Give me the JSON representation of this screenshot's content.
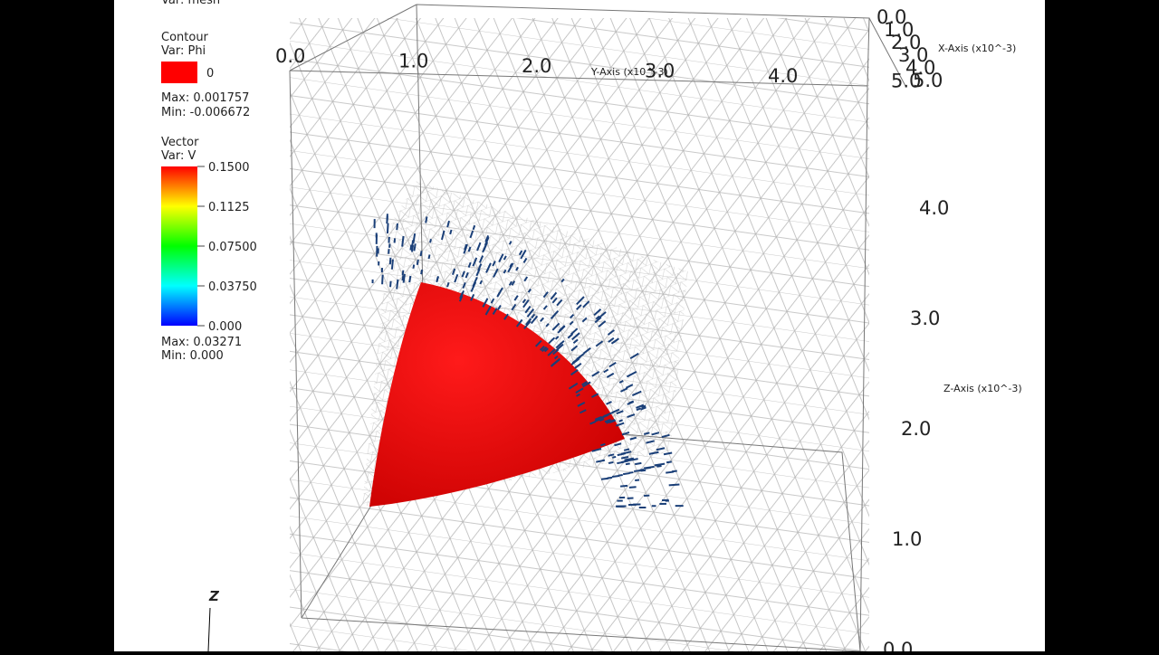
{
  "legend": {
    "mesh_var": "Var: mesh",
    "contour": {
      "title": "Contour",
      "var": "Var: Phi",
      "level": "0",
      "max": "Max: 0.001757",
      "min": "Min: -0.006672"
    },
    "vector": {
      "title": "Vector",
      "var": "Var: V",
      "ticks": [
        "0.1500",
        "0.1125",
        "0.07500",
        "0.03750",
        "0.000"
      ],
      "max": "Max: 0.03271",
      "min": "Min: 0.000"
    }
  },
  "axes": {
    "x_title": "X-Axis (x10^-3)",
    "y_title": "Y-Axis (x10^-3)",
    "z_title": "Z-Axis (x10^-3)",
    "x_ticks": [
      "0.0",
      "1.0",
      "2.0",
      "3.0",
      "4.0",
      "5.0"
    ],
    "y_ticks": [
      "0.0",
      "1.0",
      "2.0",
      "3.0",
      "4.0",
      "5.0"
    ],
    "z_ticks": [
      "0.0",
      "1.0",
      "2.0",
      "3.0",
      "4.0"
    ],
    "triad_label": "Z"
  }
}
